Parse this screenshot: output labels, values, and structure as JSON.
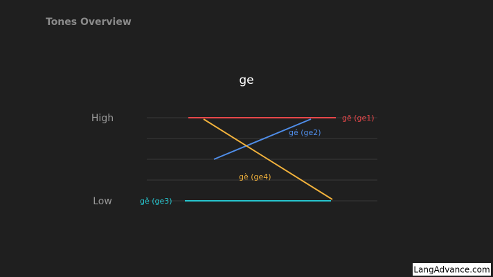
{
  "header": {
    "title": "Tones Overview"
  },
  "syllable": "ge",
  "axis": {
    "high": "High",
    "low": "Low"
  },
  "tones": [
    {
      "label": "gē (ge1)"
    },
    {
      "label": "gé (ge2)"
    },
    {
      "label": "gě (ge3)"
    },
    {
      "label": "gè (ge4)"
    }
  ],
  "watermark": "LangAdvance.com"
}
